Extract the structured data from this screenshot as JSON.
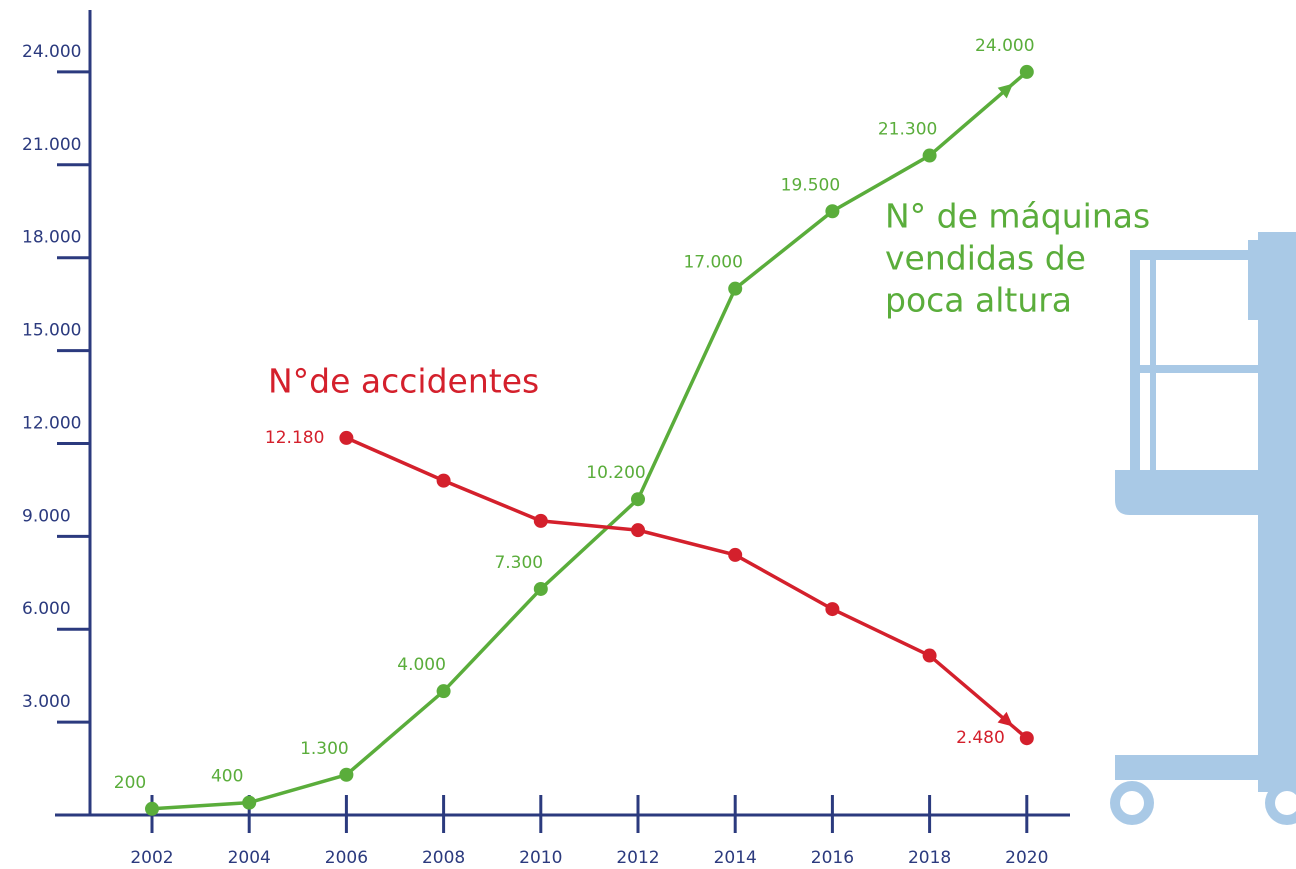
{
  "chart_data": {
    "type": "line",
    "x": [
      2002,
      2004,
      2006,
      2008,
      2010,
      2012,
      2014,
      2016,
      2018,
      2020
    ],
    "xlim": [
      2000,
      2021
    ],
    "xticks": [
      2002,
      2004,
      2006,
      2008,
      2010,
      2012,
      2014,
      2016,
      2018,
      2020
    ],
    "ylim": [
      0,
      26000
    ],
    "yticks": [
      {
        "value": 3000,
        "label": "3.000"
      },
      {
        "value": 6000,
        "label": "6.000"
      },
      {
        "value": 9000,
        "label": "9.000"
      },
      {
        "value": 12000,
        "label": "12.000"
      },
      {
        "value": 15000,
        "label": "15.000"
      },
      {
        "value": 18000,
        "label": "18.000"
      },
      {
        "value": 21000,
        "label": "21.000"
      },
      {
        "value": 24000,
        "label": "24.000"
      }
    ],
    "series": [
      {
        "name": [
          "N° de máquinas",
          "vendidas de",
          "poca altura"
        ],
        "color": "#5aad3b",
        "values": [
          200,
          400,
          1300,
          4000,
          7300,
          10200,
          17000,
          19500,
          21300,
          24000
        ],
        "value_labels": [
          "200",
          "400",
          "1.300",
          "4.000",
          "7.300",
          "10.200",
          "17.000",
          "19.500",
          "21.300",
          "24.000"
        ]
      },
      {
        "name": "N°de accidentes",
        "color": "#d4202c",
        "values": [
          null,
          null,
          12180,
          10800,
          9500,
          9200,
          8400,
          6650,
          5150,
          2480
        ],
        "value_labels": [
          null,
          null,
          "12.180",
          null,
          null,
          null,
          null,
          null,
          null,
          "2.480"
        ]
      }
    ]
  }
}
